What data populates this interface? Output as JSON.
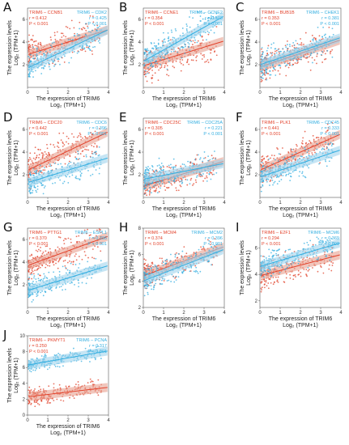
{
  "palette": {
    "red": "#e2412a",
    "blue": "#33aee0",
    "axis": "#555555",
    "band_red": "#e8a090",
    "band_blue": "#a0d4ec"
  },
  "chart_data": [
    {
      "panel": "A",
      "type": "scatter",
      "xlabel": "The expression of TRIM6",
      "xlabel_sub": "Log₂ (TPM+1)",
      "ylabel": "The expression levels",
      "ylabel_sub": "Log₂ (TPM+1)",
      "xlim": [
        0,
        4
      ],
      "ylim": [
        0,
        7
      ],
      "xticks": [
        "0",
        "1",
        "2",
        "3",
        "4"
      ],
      "yticks": [
        "2",
        "4",
        "6"
      ],
      "series": [
        {
          "name": "TRIM6 – CCNB1",
          "color": "red",
          "r": "0.412",
          "p": "< 0.001",
          "intercept": 2.9,
          "slope": 0.55,
          "spread": 1.0
        },
        {
          "name": "TRIM6 – CDK2",
          "color": "blue",
          "r": "0.425",
          "p": "< 0.001",
          "intercept": 1.7,
          "slope": 0.85,
          "spread": 0.9
        }
      ]
    },
    {
      "panel": "B",
      "type": "scatter",
      "xlabel": "The expression of TRIM6",
      "xlabel_sub": "Log₂ (TPM+1)",
      "ylabel": "The expression levels",
      "ylabel_sub": "Log₂ (TPM+1)",
      "xlim": [
        0,
        4
      ],
      "ylim": [
        0,
        7
      ],
      "xticks": [
        "0",
        "1",
        "2",
        "3",
        "4"
      ],
      "yticks": [
        "2",
        "4",
        "6"
      ],
      "series": [
        {
          "name": "TRIM6 – CCNE1",
          "color": "red",
          "r": "0.354",
          "p": "< 0.001",
          "intercept": 1.9,
          "slope": 0.55,
          "spread": 1.0
        },
        {
          "name": "TRIM6 – CCNE2",
          "color": "blue",
          "r": "0.503",
          "p": "< 0.001",
          "intercept": 2.3,
          "slope": 1.0,
          "spread": 1.0
        }
      ]
    },
    {
      "panel": "C",
      "type": "scatter",
      "xlabel": "The expression of TRIM6",
      "xlabel_sub": "Log₂ (TPM+1)",
      "ylabel": "The expression levels",
      "ylabel_sub": "Log₂ (TPM+1)",
      "xlim": [
        0,
        4
      ],
      "ylim": [
        0,
        7
      ],
      "xticks": [
        "0",
        "1",
        "2",
        "3",
        "4"
      ],
      "yticks": [
        "2",
        "4",
        "6"
      ],
      "series": [
        {
          "name": "TRIM6 – BUB1B",
          "color": "red",
          "r": "0.353",
          "p": "< 0.001",
          "intercept": 1.8,
          "slope": 0.6,
          "spread": 1.0
        },
        {
          "name": "TRIM6 – CHEK1",
          "color": "blue",
          "r": "0.381",
          "p": "< 0.001",
          "intercept": 2.0,
          "slope": 0.6,
          "spread": 1.0
        }
      ]
    },
    {
      "panel": "D",
      "type": "scatter",
      "xlabel": "The expression of TRIM6",
      "xlabel_sub": "Log₂ (TPM+1)",
      "ylabel": "The expression levels",
      "ylabel_sub": "Log₂ (TPM+1)",
      "xlim": [
        0,
        4
      ],
      "ylim": [
        0,
        7
      ],
      "xticks": [
        "0",
        "1",
        "2",
        "3",
        "4"
      ],
      "yticks": [
        "2",
        "4",
        "6"
      ],
      "series": [
        {
          "name": "TRIM6 – CDC20",
          "color": "red",
          "r": "0.442",
          "p": "< 0.001",
          "intercept": 2.4,
          "slope": 0.85,
          "spread": 1.1
        },
        {
          "name": "TRIM6 – CDC6",
          "color": "blue",
          "r": "0.396",
          "p": "< 0.001",
          "intercept": 1.3,
          "slope": 0.55,
          "spread": 0.8
        }
      ]
    },
    {
      "panel": "E",
      "type": "scatter",
      "xlabel": "The expression of TRIM6",
      "xlabel_sub": "Log₂ (TPM+1)",
      "ylabel": "The expression levels",
      "ylabel_sub": "Log₂ (TPM+1)",
      "xlim": [
        0,
        4
      ],
      "ylim": [
        0,
        7
      ],
      "xticks": [
        "0",
        "1",
        "2",
        "3",
        "4"
      ],
      "yticks": [
        "2",
        "4",
        "6"
      ],
      "series": [
        {
          "name": "TRIM6 – CDC25C",
          "color": "red",
          "r": "0.305",
          "p": "< 0.001",
          "intercept": 1.0,
          "slope": 0.55,
          "spread": 0.9
        },
        {
          "name": "TRIM6 – CDC25A",
          "color": "blue",
          "r": "0.221",
          "p": "< 0.001",
          "intercept": 1.6,
          "slope": 0.35,
          "spread": 0.9
        }
      ]
    },
    {
      "panel": "F",
      "type": "scatter",
      "xlabel": "The expression of TRIM6",
      "xlabel_sub": "Log₂ (TPM+1)",
      "ylabel": "The expression levels",
      "ylabel_sub": "Log₂ (TPM+1)",
      "xlim": [
        0,
        4
      ],
      "ylim": [
        0,
        7
      ],
      "xticks": [
        "0",
        "1",
        "2",
        "3",
        "4"
      ],
      "yticks": [
        "2",
        "4",
        "6"
      ],
      "series": [
        {
          "name": "TRIM6 – PLK1",
          "color": "red",
          "r": "0.441",
          "p": "< 0.001",
          "intercept": 2.4,
          "slope": 0.8,
          "spread": 1.0
        },
        {
          "name": "TRIM6 – CDC45",
          "color": "blue",
          "r": "0.333",
          "p": "< 0.001",
          "intercept": 1.8,
          "slope": 0.6,
          "spread": 0.9
        }
      ]
    },
    {
      "panel": "G",
      "type": "scatter",
      "xlabel": "The expression of TRIM6",
      "xlabel_sub": "Log₂ (TPM+1)",
      "ylabel": "The expression levels",
      "ylabel_sub": "Log₂ (TPM+1)",
      "xlim": [
        0,
        4
      ],
      "ylim": [
        0,
        7
      ],
      "xticks": [
        "0",
        "1",
        "2",
        "3",
        "4"
      ],
      "yticks": [
        "2",
        "4",
        "6"
      ],
      "series": [
        {
          "name": "TRIM6 – PTTG1",
          "color": "red",
          "r": "0.370",
          "p": "< 0.001",
          "intercept": 3.7,
          "slope": 0.65,
          "spread": 1.0
        },
        {
          "name": "TRIM6 – ESPL1",
          "color": "blue",
          "r": "0.396",
          "p": "< 0.001",
          "intercept": 1.5,
          "slope": 0.55,
          "spread": 0.7
        }
      ]
    },
    {
      "panel": "H",
      "type": "scatter",
      "xlabel": "The expression of TRIM6",
      "xlabel_sub": "Log₂ (TPM+1)",
      "ylabel": "The expression levels",
      "ylabel_sub": "Log₂ (TPM+1)",
      "xlim": [
        0,
        4
      ],
      "ylim": [
        2,
        8
      ],
      "xticks": [
        "0",
        "1",
        "2",
        "3",
        "4"
      ],
      "yticks": [
        "2",
        "4",
        "6",
        "8"
      ],
      "series": [
        {
          "name": "TRIM6 – MCM4",
          "color": "red",
          "r": "0.374",
          "p": "< 0.001",
          "intercept": 4.4,
          "slope": 0.55,
          "spread": 0.8
        },
        {
          "name": "TRIM6 – MCM2",
          "color": "blue",
          "r": "0.396",
          "p": "< 0.001",
          "intercept": 4.0,
          "slope": 0.6,
          "spread": 0.8
        }
      ]
    },
    {
      "panel": "I",
      "type": "scatter",
      "xlabel": "The expression of TRIM6",
      "xlabel_sub": "Log₂ (TPM+1)",
      "ylabel": "The expression levels",
      "ylabel_sub": "Log₂ (TPM+1)",
      "xlim": [
        0,
        4
      ],
      "ylim": [
        1.5,
        7.5
      ],
      "xticks": [
        "0",
        "1",
        "2",
        "3",
        "4"
      ],
      "yticks": [
        "2",
        "4",
        "6"
      ],
      "series": [
        {
          "name": "TRIM6 – E2F1",
          "color": "red",
          "r": "0.294",
          "p": "< 0.001",
          "intercept": 3.9,
          "slope": 0.4,
          "spread": 0.8
        },
        {
          "name": "TRIM6 – MCM6",
          "color": "blue",
          "r": "0.369",
          "p": "< 0.001",
          "intercept": 4.6,
          "slope": 0.45,
          "spread": 0.7
        }
      ]
    },
    {
      "panel": "J",
      "type": "scatter",
      "xlabel": "The expression of TRIM6",
      "xlabel_sub": "Log₂ (TPM+1)",
      "ylabel": "The expression levels",
      "ylabel_sub": "Log₂ (TPM+1)",
      "xlim": [
        0,
        4
      ],
      "ylim": [
        0,
        10
      ],
      "xticks": [
        "0",
        "1",
        "2",
        "3",
        "4"
      ],
      "yticks": [
        "0",
        "2",
        "4",
        "6",
        "8",
        "10"
      ],
      "series": [
        {
          "name": "TRIM6 – PKMYT1",
          "color": "red",
          "r": "0.250",
          "p": "< 0.001",
          "intercept": 2.3,
          "slope": 0.3,
          "spread": 0.8
        },
        {
          "name": "TRIM6 – PCNA",
          "color": "blue",
          "r": "0.317",
          "p": "< 0.001",
          "intercept": 6.3,
          "slope": 0.45,
          "spread": 0.6
        }
      ]
    }
  ]
}
